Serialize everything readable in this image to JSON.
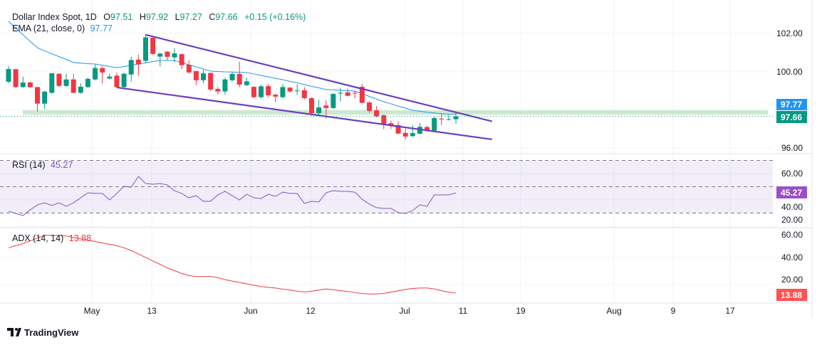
{
  "header": {
    "symbol": "Dollar Index Spot, 1D",
    "open_label": "O",
    "open": "97.51",
    "high_label": "H",
    "high": "97.92",
    "low_label": "L",
    "low": "97.27",
    "close_label": "C",
    "close": "97.66",
    "change": "+0.15 (+0.16%)"
  },
  "ema_legend": {
    "label": "EMA (21, close, 0)",
    "value": "97.77"
  },
  "rsi_legend": {
    "label": "RSI (14)",
    "value": "45.27"
  },
  "adx_legend": {
    "label": "ADX (14, 14)",
    "value": "13.88"
  },
  "price_tags": {
    "ema": "97.77",
    "last": "97.66",
    "rsi": "45.27",
    "adx": "13.88"
  },
  "price_axis": [
    "102.00",
    "100.00",
    "96.00"
  ],
  "rsi_axis": [
    "60.00",
    "40.00",
    "20.00"
  ],
  "adx_axis": [
    "60.00",
    "40.00",
    "20.00"
  ],
  "time_axis": [
    "May",
    "13",
    "Jun",
    "12",
    "Jul",
    "11",
    "19",
    "Aug",
    "9",
    "17"
  ],
  "brand": "TradingView",
  "colors": {
    "up": "#089981",
    "down": "#f23645",
    "ema": "#2196f3",
    "rsi": "#7e57c2",
    "adx": "#f23645",
    "trendline": "#6a3fc0",
    "support_zone": "#c8e6c9",
    "rsi_tag": "#9c4fc4",
    "adx_tag": "#ff5252"
  },
  "chart_data": [
    {
      "type": "candlestick",
      "title": "Dollar Index Spot, 1D",
      "ylim": [
        95.8,
        103
      ],
      "candles": [
        [
          99.48,
          100.3,
          99.4,
          100.15
        ],
        [
          100.14,
          100.14,
          99.15,
          99.2
        ],
        [
          99.2,
          99.74,
          99.15,
          99.44
        ],
        [
          99.44,
          99.5,
          99.19,
          99.19
        ],
        [
          99.2,
          99.2,
          97.92,
          98.33
        ],
        [
          98.33,
          99.0,
          98.05,
          98.96
        ],
        [
          98.9,
          99.95,
          98.85,
          99.92
        ],
        [
          99.9,
          99.92,
          99.2,
          99.26
        ],
        [
          99.26,
          99.9,
          99.2,
          99.6
        ],
        [
          99.6,
          99.9,
          98.85,
          98.9
        ],
        [
          98.9,
          99.4,
          98.85,
          99.22
        ],
        [
          99.2,
          99.7,
          99.15,
          99.63
        ],
        [
          99.6,
          100.38,
          99.55,
          100.2
        ],
        [
          100.2,
          100.3,
          99.39,
          99.97
        ],
        [
          99.65,
          99.9,
          99.6,
          99.75
        ],
        [
          99.8,
          99.96,
          99.15,
          99.2
        ],
        [
          99.2,
          99.95,
          99.15,
          99.9
        ],
        [
          99.86,
          100.8,
          99.5,
          100.62
        ],
        [
          100.64,
          100.9,
          99.8,
          100.39
        ],
        [
          100.58,
          101.95,
          100.5,
          101.81
        ],
        [
          101.79,
          101.8,
          100.9,
          100.94
        ],
        [
          100.8,
          101.0,
          100.29,
          100.96
        ],
        [
          101.06,
          101.1,
          100.62,
          100.79
        ],
        [
          100.76,
          101.23,
          100.5,
          100.97
        ],
        [
          100.93,
          100.95,
          100.15,
          100.35
        ],
        [
          100.37,
          100.6,
          99.9,
          99.97
        ],
        [
          100.04,
          100.06,
          99.3,
          99.56
        ],
        [
          99.56,
          100.1,
          99.4,
          99.92
        ],
        [
          99.94,
          99.96,
          99.0,
          99.07
        ],
        [
          99.1,
          99.2,
          98.8,
          98.97
        ],
        [
          98.97,
          99.7,
          98.8,
          99.6
        ],
        [
          99.56,
          99.97,
          99.5,
          99.89
        ],
        [
          99.89,
          100.53,
          99.2,
          99.33
        ],
        [
          99.3,
          99.7,
          99.25,
          99.5
        ],
        [
          99.21,
          99.25,
          98.62,
          98.67
        ],
        [
          98.67,
          99.33,
          98.6,
          99.24
        ],
        [
          99.25,
          99.35,
          98.65,
          98.77
        ],
        [
          98.8,
          98.85,
          98.4,
          98.7
        ],
        [
          98.67,
          99.35,
          98.62,
          99.2
        ],
        [
          99.17,
          99.2,
          98.9,
          98.97
        ],
        [
          99.0,
          99.35,
          98.8,
          99.02
        ],
        [
          99.03,
          99.2,
          98.55,
          98.62
        ],
        [
          98.62,
          98.65,
          97.7,
          97.83
        ],
        [
          97.83,
          98.52,
          97.73,
          98.13
        ],
        [
          98.23,
          98.5,
          97.55,
          98.1
        ],
        [
          98.1,
          98.88,
          98.05,
          98.84
        ],
        [
          98.86,
          99.15,
          98.45,
          98.9
        ],
        [
          98.92,
          99.12,
          98.7,
          98.74
        ],
        [
          98.9,
          99.0,
          98.6,
          98.87
        ],
        [
          99.21,
          99.36,
          98.35,
          98.37
        ],
        [
          98.39,
          98.45,
          97.85,
          97.95
        ],
        [
          97.98,
          98.2,
          97.6,
          97.66
        ],
        [
          97.72,
          97.75,
          96.98,
          97.26
        ],
        [
          97.3,
          97.45,
          97.0,
          97.2
        ],
        [
          97.2,
          97.4,
          96.72,
          96.76
        ],
        [
          96.79,
          97.02,
          96.44,
          96.6
        ],
        [
          96.62,
          97.2,
          96.58,
          96.78
        ],
        [
          96.75,
          97.3,
          96.7,
          97.11
        ],
        [
          97.1,
          97.15,
          96.85,
          96.92
        ],
        [
          96.91,
          97.65,
          96.88,
          97.57
        ],
        [
          97.54,
          97.8,
          97.2,
          97.5
        ],
        [
          97.48,
          97.75,
          97.45,
          97.51
        ],
        [
          97.51,
          97.92,
          97.27,
          97.66
        ]
      ],
      "ema21": [
        102.65,
        102.3,
        101.95,
        101.6,
        101.27,
        101.1,
        100.95,
        100.8,
        100.65,
        100.49,
        100.46,
        100.43,
        100.41,
        100.35,
        100.28,
        100.22,
        100.28,
        100.35,
        100.41,
        100.47,
        100.54,
        100.6,
        100.6,
        100.6,
        100.48,
        100.37,
        100.26,
        100.15,
        100.04,
        100.02,
        100.0,
        99.99,
        99.97,
        99.96,
        99.89,
        99.81,
        99.74,
        99.66,
        99.59,
        99.5,
        99.42,
        99.33,
        99.24,
        99.16,
        99.07,
        99.05,
        99.03,
        99.01,
        98.99,
        98.85,
        98.71,
        98.57,
        98.43,
        98.32,
        98.2,
        98.09,
        97.98,
        97.93,
        97.88,
        97.84,
        97.8,
        97.78,
        97.77
      ],
      "upper_trendline": [
        [
          19,
          101.95
        ],
        [
          67,
          97.4
        ]
      ],
      "lower_trendline": [
        [
          15,
          99.18
        ],
        [
          67,
          96.45
        ]
      ],
      "support_zone": [
        97.75,
        97.98
      ],
      "last_price_line": 97.66
    },
    {
      "type": "line",
      "title": "RSI (14)",
      "ylim": [
        20,
        70
      ],
      "bands": [
        30,
        50,
        70
      ],
      "values": [
        31.4,
        29.7,
        28.1,
        32.4,
        36.2,
        37.8,
        35.7,
        37.8,
        35.1,
        37.8,
        41.6,
        45.4,
        44.9,
        44.9,
        40,
        44.9,
        50.3,
        49.7,
        57.8,
        52.4,
        51.9,
        52.4,
        51.4,
        47,
        44.9,
        41.6,
        43.2,
        38.9,
        38.9,
        43.8,
        46.5,
        43.2,
        40,
        44.3,
        41.6,
        41.1,
        44.3,
        42.7,
        45.9,
        44.9,
        44.9,
        37.3,
        38.9,
        38.4,
        45.4,
        47,
        46.5,
        46.5,
        45.9,
        40.5,
        36.8,
        34.1,
        33.5,
        33.5,
        30.3,
        29.7,
        31.9,
        36.2,
        35.1,
        43.8,
        43.8,
        43.8,
        45.27
      ]
    },
    {
      "type": "line",
      "title": "ADX (14, 14)",
      "values": [
        46.5,
        48,
        49.5,
        51.5,
        53.5,
        55.5,
        55.5,
        55.3,
        55,
        54,
        53,
        52,
        51,
        50,
        49,
        48,
        46.5,
        44.5,
        42,
        39.5,
        37,
        34.5,
        32,
        30,
        28,
        26.5,
        25.8,
        25.8,
        25.8,
        25,
        23.5,
        22.5,
        21.5,
        20.5,
        19.5,
        18.5,
        18,
        17.5,
        16.7,
        16,
        15.2,
        14.6,
        15.2,
        16,
        16.8,
        16.2,
        15.6,
        15,
        14.2,
        13.5,
        13.2,
        13.2,
        13.6,
        14.5,
        15.5,
        16.5,
        17.2,
        17.5,
        17.5,
        16.8,
        15.6,
        14.5,
        13.88
      ]
    }
  ]
}
